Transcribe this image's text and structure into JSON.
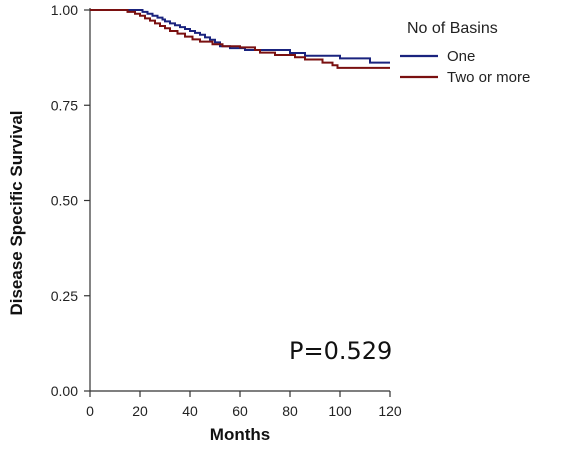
{
  "chart_data": {
    "type": "line",
    "step": true,
    "ylabel": "Disease Specific Survival",
    "xlabel": "Months",
    "xlim": [
      0,
      120
    ],
    "ylim": [
      0,
      1
    ],
    "xticks": [
      0,
      20,
      40,
      60,
      80,
      100,
      120
    ],
    "xtick_labels": [
      "0",
      "20",
      "40",
      "60",
      "80",
      "100",
      "120"
    ],
    "yticks": [
      0,
      0.25,
      0.5,
      0.75,
      1.0
    ],
    "ytick_labels": [
      "0.00",
      "0.25",
      "0.50",
      "0.75",
      "1.00"
    ],
    "grid": false,
    "legend": {
      "title": "No of Basins",
      "position": "top-right"
    },
    "annotation": "P=0.529",
    "series": [
      {
        "name": "One",
        "color": "#1a237e",
        "points": [
          [
            0,
            1.0
          ],
          [
            19,
            1.0
          ],
          [
            21,
            0.995
          ],
          [
            23,
            0.99
          ],
          [
            25,
            0.985
          ],
          [
            27,
            0.98
          ],
          [
            29,
            0.975
          ],
          [
            30,
            0.97
          ],
          [
            32,
            0.965
          ],
          [
            34,
            0.96
          ],
          [
            36,
            0.955
          ],
          [
            38,
            0.95
          ],
          [
            40,
            0.945
          ],
          [
            42,
            0.94
          ],
          [
            44,
            0.935
          ],
          [
            46,
            0.928
          ],
          [
            48,
            0.922
          ],
          [
            50,
            0.915
          ],
          [
            52,
            0.905
          ],
          [
            56,
            0.9
          ],
          [
            62,
            0.895
          ],
          [
            80,
            0.887
          ],
          [
            86,
            0.88
          ],
          [
            100,
            0.873
          ],
          [
            112,
            0.862
          ],
          [
            120,
            0.862
          ]
        ]
      },
      {
        "name": "Two or more",
        "color": "#7a1010",
        "points": [
          [
            0,
            1.0
          ],
          [
            13,
            1.0
          ],
          [
            15,
            0.995
          ],
          [
            18,
            0.99
          ],
          [
            20,
            0.985
          ],
          [
            22,
            0.978
          ],
          [
            24,
            0.972
          ],
          [
            26,
            0.965
          ],
          [
            28,
            0.958
          ],
          [
            30,
            0.952
          ],
          [
            32,
            0.945
          ],
          [
            35,
            0.938
          ],
          [
            38,
            0.93
          ],
          [
            41,
            0.923
          ],
          [
            44,
            0.917
          ],
          [
            49,
            0.91
          ],
          [
            53,
            0.905
          ],
          [
            60,
            0.902
          ],
          [
            66,
            0.895
          ],
          [
            68,
            0.888
          ],
          [
            74,
            0.882
          ],
          [
            82,
            0.876
          ],
          [
            86,
            0.87
          ],
          [
            93,
            0.862
          ],
          [
            97,
            0.855
          ],
          [
            99,
            0.848
          ],
          [
            120,
            0.848
          ]
        ]
      }
    ]
  }
}
